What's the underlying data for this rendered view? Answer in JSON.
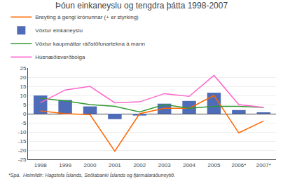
{
  "chart_data": {
    "type": "bar",
    "title": "Þóun einkaneyslu og tengdra þátta 1998-2007",
    "categories": [
      "1998",
      "1999",
      "2000",
      "2001",
      "2002",
      "2003",
      "2004",
      "2005",
      "2006*",
      "2007*"
    ],
    "series": [
      {
        "name": "Breyting á gengi krónunnar (+ er styrking)",
        "type": "line",
        "color": "#FF6600",
        "values": [
          1.5,
          0,
          -0.5,
          -20.5,
          0,
          3,
          3,
          10,
          -10.5,
          -4
        ]
      },
      {
        "name": "Vöxtur einkaneyslu",
        "type": "bar",
        "color": "#4F6CB8",
        "values": [
          10,
          7.5,
          4,
          -3,
          -1,
          5.5,
          7,
          11.5,
          2,
          0.5
        ]
      },
      {
        "name": "Vöxtur kaupmáttar ráðstöfunartekna á mann",
        "type": "line",
        "color": "#339933",
        "values": [
          8.5,
          7,
          5,
          4,
          1,
          5,
          3,
          4,
          4,
          3.5
        ]
      },
      {
        "name": "Húsnæðisverðbólga",
        "type": "line",
        "color": "#FF66CC",
        "values": [
          6,
          13,
          15,
          6,
          6.5,
          11,
          9.5,
          21,
          5,
          3.5
        ]
      }
    ],
    "annotations": [
      "*Spá.  Heimildir: Hagstofa Íslands, Seðlabanki Íslands og fjármálaráðuneytið."
    ],
    "ylim": [
      -25,
      25
    ],
    "yticks": [
      -25,
      -20,
      -15,
      -10,
      -5,
      0,
      5,
      10,
      15,
      20,
      25
    ],
    "grid": true,
    "legend": "top"
  }
}
